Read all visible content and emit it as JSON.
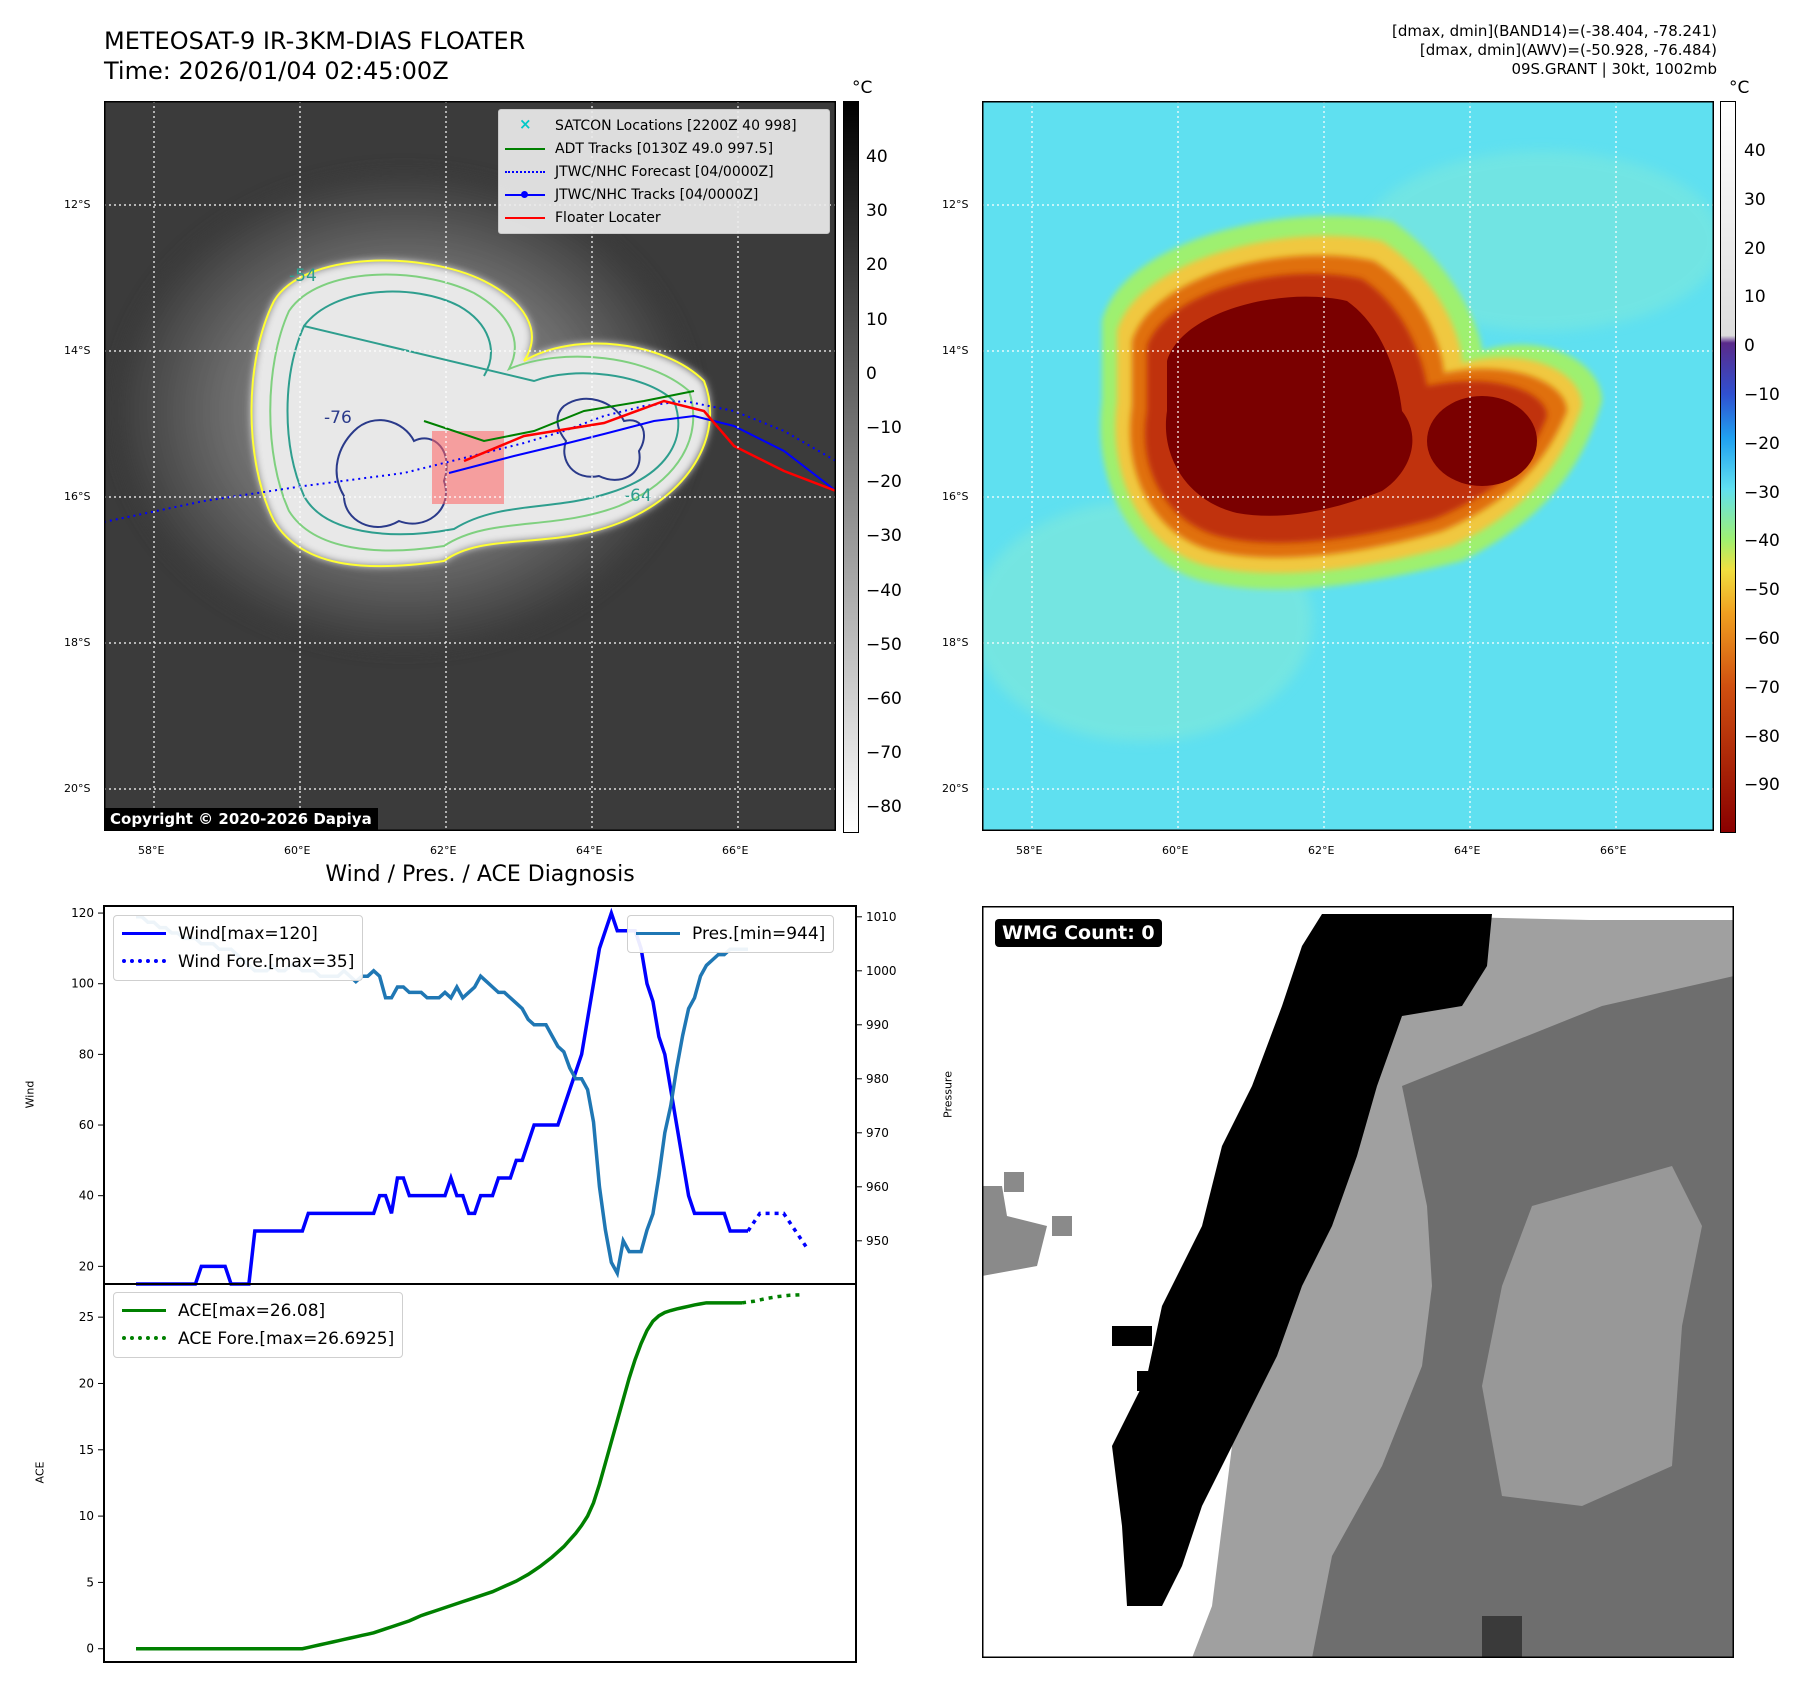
{
  "header": {
    "title_line1": "METEOSAT-9 IR-3KM-DIAS FLOATER",
    "title_line2": "Time: 2026/01/04 02:45:00Z",
    "right_line1": "[dmax, dmin](BAND14)=(-38.404, -78.241)",
    "right_line2": "[dmax, dmin](AWV)=(-50.928, -76.484)",
    "right_line3": "09S.GRANT | 30kt, 1002mb"
  },
  "maps": {
    "lat_labels": [
      "12°S",
      "14°S",
      "16°S",
      "18°S",
      "20°S"
    ],
    "lon_labels": [
      "58°E",
      "60°E",
      "62°E",
      "64°E",
      "66°E"
    ],
    "copyright": "Copyright © 2020-2026 Dapiya",
    "contour_labels": [
      "-54",
      "-76",
      "-64"
    ],
    "ir_colorbar": {
      "unit": "°C",
      "ticks": [
        "40",
        "30",
        "20",
        "10",
        "0",
        "−10",
        "−20",
        "−30",
        "−40",
        "−50",
        "−60",
        "−70",
        "−80"
      ]
    },
    "awv_colorbar": {
      "unit": "°C",
      "ticks": [
        "40",
        "30",
        "20",
        "10",
        "0",
        "−10",
        "−20",
        "−30",
        "−40",
        "−50",
        "−60",
        "−70",
        "−80",
        "−90"
      ]
    },
    "legend": [
      {
        "label": "SATCON Locations [2200Z 40 998]",
        "color": "#00c8c8",
        "style": "x"
      },
      {
        "label": "ADT Tracks [0130Z 49.0 997.5]",
        "color": "#008000",
        "style": "line"
      },
      {
        "label": "JTWC/NHC Forecast [04/0000Z]",
        "color": "#0000ff",
        "style": "dotted"
      },
      {
        "label": "JTWC/NHC Tracks [04/0000Z]",
        "color": "#0000ff",
        "style": "line-dot"
      },
      {
        "label": "Floater Locater",
        "color": "#ff0000",
        "style": "line"
      }
    ]
  },
  "wmg": {
    "label": "WMG Count: 0"
  },
  "chart_data": [
    {
      "type": "line",
      "title": "Wind / Pres. / ACE Diagnosis",
      "ylabel": "Wind",
      "y2label": "Pressure",
      "ylim": [
        15,
        122
      ],
      "y2lim": [
        942,
        1012
      ],
      "yticks": [
        20,
        40,
        60,
        80,
        100,
        120
      ],
      "y2ticks": [
        950,
        960,
        970,
        980,
        990,
        1000,
        1010
      ],
      "series": [
        {
          "name": "Wind[max=120]",
          "color": "#0000ff",
          "style": "solid",
          "axis": "left",
          "values": [
            15,
            15,
            15,
            15,
            15,
            15,
            15,
            15,
            15,
            15,
            15,
            20,
            20,
            20,
            20,
            20,
            15,
            15,
            15,
            15,
            30,
            30,
            30,
            30,
            30,
            30,
            30,
            30,
            30,
            35,
            35,
            35,
            35,
            35,
            35,
            35,
            35,
            35,
            35,
            35,
            35,
            40,
            40,
            35,
            45,
            45,
            40,
            40,
            40,
            40,
            40,
            40,
            40,
            45,
            40,
            40,
            35,
            35,
            40,
            40,
            40,
            45,
            45,
            45,
            50,
            50,
            55,
            60,
            60,
            60,
            60,
            60,
            65,
            70,
            75,
            80,
            90,
            100,
            110,
            115,
            120,
            115,
            115,
            115,
            115,
            110,
            100,
            95,
            85,
            80,
            70,
            60,
            50,
            40,
            35,
            35,
            35,
            35,
            35,
            35,
            30,
            30,
            30,
            30
          ]
        },
        {
          "name": "Wind Fore.[max=35]",
          "color": "#0000ff",
          "style": "dotted",
          "axis": "left",
          "x_start": 103,
          "x_step": 2,
          "values": [
            30,
            35,
            35,
            35,
            30,
            25
          ]
        },
        {
          "name": "Pres.[min=944]",
          "color": "#1f77b4",
          "style": "solid",
          "axis": "right",
          "values": [
            1010,
            1010,
            1009,
            1009,
            1008,
            1008,
            1007,
            1007,
            1006,
            1006,
            1006,
            1005,
            1005,
            1005,
            1004,
            1004,
            1004,
            1003,
            1002,
            1001,
            1000,
            1000,
            1000,
            1001,
            1000,
            1000,
            1001,
            1001,
            1000,
            1000,
            1000,
            999,
            999,
            999,
            999,
            1000,
            999,
            998,
            999,
            999,
            1000,
            999,
            995,
            995,
            997,
            997,
            996,
            996,
            996,
            995,
            995,
            995,
            996,
            995,
            997,
            995,
            996,
            997,
            999,
            998,
            997,
            996,
            996,
            995,
            994,
            993,
            991,
            990,
            990,
            990,
            988,
            986,
            985,
            982,
            980,
            980,
            978,
            972,
            960,
            952,
            946,
            944,
            950,
            948,
            948,
            948,
            952,
            955,
            962,
            970,
            975,
            982,
            988,
            993,
            995,
            999,
            1001,
            1002,
            1003,
            1003,
            1004,
            1004,
            1004,
            1004
          ]
        }
      ]
    },
    {
      "type": "line",
      "ylabel": "ACE",
      "ylim": [
        -1,
        27.5
      ],
      "yticks": [
        0,
        5,
        10,
        15,
        20,
        25
      ],
      "series": [
        {
          "name": "ACE[max=26.08]",
          "color": "#008000",
          "style": "solid",
          "values": [
            0,
            0,
            0,
            0,
            0,
            0,
            0,
            0,
            0,
            0,
            0,
            0,
            0,
            0,
            0,
            0,
            0,
            0,
            0,
            0,
            0,
            0,
            0,
            0,
            0,
            0,
            0,
            0,
            0,
            0.1,
            0.2,
            0.3,
            0.4,
            0.5,
            0.6,
            0.7,
            0.8,
            0.9,
            1.0,
            1.1,
            1.2,
            1.35,
            1.5,
            1.65,
            1.8,
            1.95,
            2.1,
            2.3,
            2.5,
            2.65,
            2.8,
            2.95,
            3.1,
            3.25,
            3.4,
            3.55,
            3.7,
            3.85,
            4.0,
            4.15,
            4.3,
            4.5,
            4.7,
            4.9,
            5.1,
            5.35,
            5.6,
            5.9,
            6.2,
            6.55,
            6.9,
            7.3,
            7.7,
            8.2,
            8.7,
            9.3,
            10.0,
            11.0,
            12.4,
            14.0,
            15.6,
            17.2,
            18.8,
            20.4,
            21.8,
            23.0,
            24.0,
            24.7,
            25.1,
            25.35,
            25.5,
            25.62,
            25.72,
            25.82,
            25.92,
            26.0,
            26.08,
            26.08,
            26.08,
            26.08,
            26.08,
            26.08,
            26.08
          ]
        },
        {
          "name": "ACE Fore.[max=26.6925]",
          "color": "#008000",
          "style": "dotted",
          "x_start": 102,
          "x_step": 2,
          "values": [
            26.08,
            26.2,
            26.4,
            26.55,
            26.65,
            26.69
          ]
        }
      ]
    }
  ]
}
